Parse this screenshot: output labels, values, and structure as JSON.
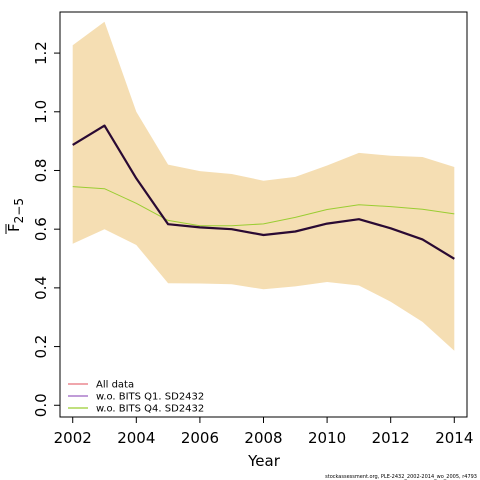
{
  "chart_data": {
    "type": "line",
    "xlabel": "Year",
    "ylabel_main": "F",
    "ylabel_sub": "2−5",
    "xlim": [
      2001.6,
      2014.4
    ],
    "ylim": [
      -0.04,
      1.34
    ],
    "x_ticks": [
      "2002",
      "2004",
      "2006",
      "2008",
      "2010",
      "2012",
      "2014"
    ],
    "y_ticks": [
      "0.0",
      "0.2",
      "0.4",
      "0.6",
      "0.8",
      "1.0",
      "1.2"
    ],
    "x": [
      2002,
      2003,
      2004,
      2005,
      2006,
      2007,
      2008,
      2009,
      2010,
      2011,
      2012,
      2013,
      2014
    ],
    "band": {
      "color": "#f5deb3",
      "upper": [
        1.227,
        1.307,
        1.0,
        0.82,
        0.798,
        0.788,
        0.765,
        0.778,
        0.817,
        0.86,
        0.85,
        0.846,
        0.812
      ],
      "lower": [
        0.55,
        0.6,
        0.546,
        0.416,
        0.415,
        0.412,
        0.395,
        0.405,
        0.42,
        0.408,
        0.353,
        0.284,
        0.186
      ]
    },
    "series": [
      {
        "name": "All data",
        "color": "#e8707a",
        "width": 1.5,
        "values": [
          0.887,
          0.953,
          0.773,
          0.617,
          0.606,
          0.6,
          0.58,
          0.592,
          0.619,
          0.634,
          0.603,
          0.565,
          0.499
        ]
      },
      {
        "name": "w.o. BITS Q1. SD2432",
        "color": "#9a60c0",
        "width": 1.5,
        "values": [
          0.887,
          0.953,
          0.773,
          0.617,
          0.606,
          0.6,
          0.58,
          0.592,
          0.619,
          0.634,
          0.603,
          0.565,
          0.499
        ]
      },
      {
        "name": "w.o. BITS Q4. SD2432",
        "color": "#9acd32",
        "width": 1,
        "values": [
          0.745,
          0.738,
          0.688,
          0.63,
          0.612,
          0.612,
          0.618,
          0.64,
          0.667,
          0.683,
          0.677,
          0.668,
          0.652
        ]
      }
    ],
    "estimate": {
      "color": "#2a0a33",
      "width": 2.2,
      "values": [
        0.887,
        0.953,
        0.773,
        0.617,
        0.606,
        0.6,
        0.58,
        0.592,
        0.619,
        0.634,
        0.603,
        0.565,
        0.499
      ]
    },
    "legend_position": "bottom-left",
    "grid": false
  },
  "footer": "stockassessment.org, PLE-2432_2002-2014_wo_2005, r4793"
}
